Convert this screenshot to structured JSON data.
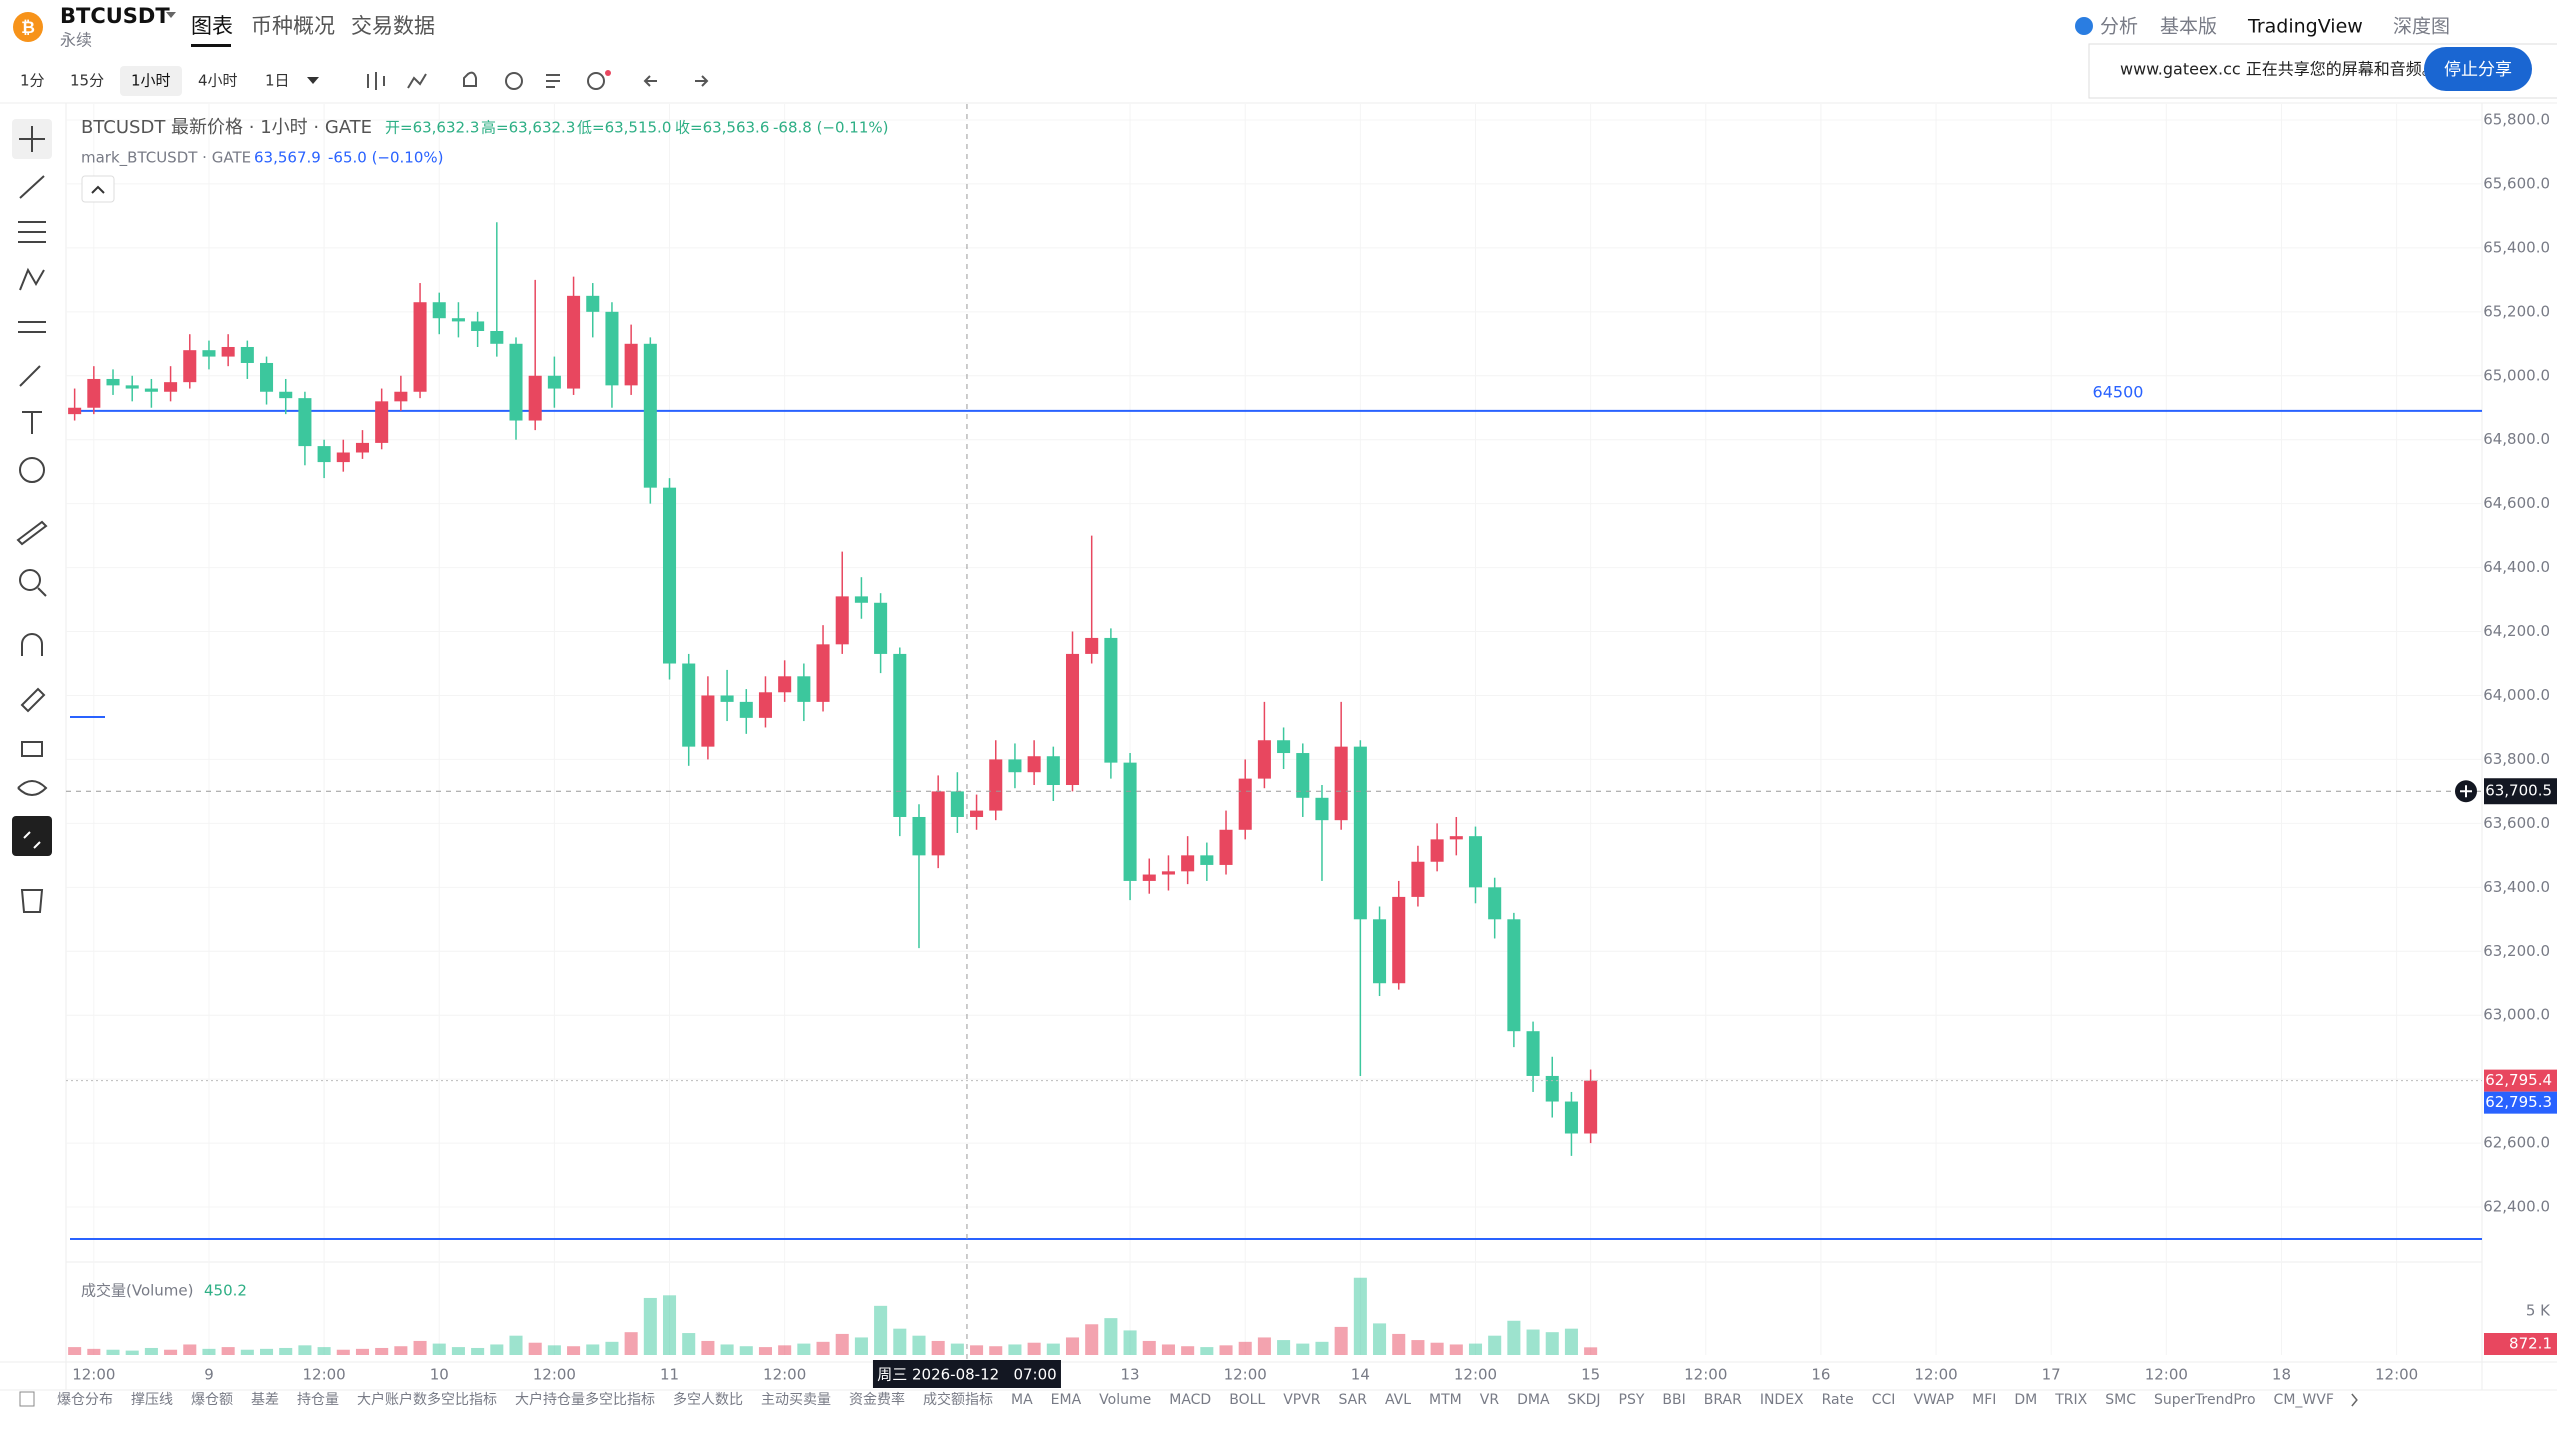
{
  "header": {
    "symbol": "BTCUSDT",
    "contract": "永续",
    "tabs": [
      "图表",
      "币种概况",
      "交易数据"
    ],
    "right_links": [
      "分析",
      "基本版",
      "TradingView",
      "深度图"
    ]
  },
  "share_bar": {
    "message": "www.gateex.cc 正在共享您的屏幕和音频。",
    "button": "停止分享"
  },
  "intervals": [
    "1分",
    "15分",
    "1小时",
    "4小时",
    "1日"
  ],
  "chart_data": {
    "type": "candlestick",
    "title": "BTCUSDT 最新价格 · 1小时 · GATE",
    "ohlc_legend": [
      "开=63,632.3",
      "高=63,632.3",
      "低=63,515.0",
      "收=63,563.6"
    ],
    "change": "-68.8 (−0.11%)",
    "mark_series": {
      "name": "mark_BTCUSDT · GATE",
      "value_label": "63,567.9",
      "change": "-65.0 (−0.10%)"
    },
    "up_color": "#e8475f",
    "down_color": "#3cc79d",
    "grid": true,
    "x": [
      0,
      2,
      4,
      6,
      8,
      10,
      12,
      14,
      16,
      18,
      20,
      22,
      24,
      26,
      28,
      30,
      32,
      34,
      36,
      38,
      40,
      42,
      44,
      46,
      48,
      50,
      52,
      54,
      56,
      58,
      60,
      62,
      64,
      66,
      68,
      70,
      72,
      74,
      76,
      78,
      80,
      82,
      84,
      86,
      88,
      90,
      92,
      94,
      96,
      98,
      100,
      102,
      104,
      106,
      108,
      110,
      112,
      114,
      116,
      118,
      120,
      122,
      124,
      126,
      128,
      130,
      132,
      134,
      136,
      138,
      140,
      142,
      144,
      146,
      148,
      150,
      152,
      154,
      156,
      158
    ],
    "open": [
      64880,
      64900,
      64990,
      64970,
      64960,
      64950,
      64980,
      65080,
      65060,
      65090,
      65040,
      64950,
      64930,
      64780,
      64730,
      64760,
      64790,
      64920,
      64950,
      65230,
      65180,
      65170,
      65140,
      65100,
      64860,
      65000,
      64960,
      65250,
      65200,
      64970,
      65100,
      64650,
      64100,
      63840,
      64000,
      63980,
      63930,
      64010,
      64060,
      63980,
      64160,
      64310,
      64290,
      64130,
      63620,
      63500,
      63700,
      63620,
      63640,
      63800,
      63760,
      63810,
      63720,
      64130,
      64180,
      63790,
      63420,
      63440,
      63450,
      63500,
      63470,
      63580,
      63740,
      63860,
      63820,
      63680,
      63610,
      63840,
      63300,
      63100,
      63370,
      63480,
      63550,
      63560,
      63400,
      63300,
      62950,
      62810,
      62730,
      62630
    ],
    "high": [
      64960,
      65030,
      65020,
      65000,
      64990,
      65030,
      65130,
      65110,
      65130,
      65110,
      65060,
      64990,
      64950,
      64800,
      64800,
      64830,
      64960,
      65000,
      65290,
      65260,
      65230,
      65200,
      65480,
      65120,
      65300,
      65060,
      65310,
      65290,
      65230,
      65160,
      65120,
      64680,
      64130,
      64060,
      64080,
      64020,
      64060,
      64110,
      64100,
      64220,
      64450,
      64370,
      64320,
      64150,
      63660,
      63750,
      63760,
      63690,
      63860,
      63850,
      63860,
      63840,
      64200,
      64500,
      64210,
      63820,
      63490,
      63500,
      63560,
      63540,
      63640,
      63800,
      63980,
      63900,
      63850,
      63720,
      63980,
      63860,
      63340,
      63420,
      63530,
      63600,
      63620,
      63590,
      63430,
      63320,
      62980,
      62870,
      62760,
      62830
    ],
    "low": [
      64860,
      64880,
      64940,
      64920,
      64900,
      64920,
      64960,
      65020,
      65030,
      64990,
      64910,
      64880,
      64720,
      64680,
      64700,
      64740,
      64770,
      64890,
      64930,
      65130,
      65120,
      65090,
      65060,
      64800,
      64830,
      64900,
      64940,
      65120,
      64900,
      64940,
      64600,
      64050,
      63780,
      63800,
      63920,
      63880,
      63900,
      63980,
      63920,
      63950,
      64130,
      64240,
      64070,
      63560,
      63210,
      63460,
      63570,
      63580,
      63610,
      63710,
      63720,
      63670,
      63700,
      64100,
      63740,
      63360,
      63380,
      63390,
      63410,
      63420,
      63440,
      63550,
      63710,
      63770,
      63620,
      63420,
      63580,
      62810,
      63060,
      63080,
      63340,
      63450,
      63500,
      63350,
      63240,
      62900,
      62760,
      62680,
      62560,
      62600
    ],
    "close": [
      64900,
      64990,
      64970,
      64960,
      64950,
      64980,
      65080,
      65060,
      65090,
      65040,
      64950,
      64930,
      64780,
      64730,
      64760,
      64790,
      64920,
      64950,
      65230,
      65180,
      65170,
      65140,
      65100,
      64860,
      65000,
      64960,
      65250,
      65200,
      64970,
      65100,
      64650,
      64100,
      63840,
      64000,
      63980,
      63930,
      64010,
      64060,
      63980,
      64160,
      64310,
      64290,
      64130,
      63620,
      63500,
      63700,
      63620,
      63640,
      63800,
      63760,
      63810,
      63720,
      64130,
      64180,
      63790,
      63420,
      63440,
      63450,
      63500,
      63470,
      63580,
      63740,
      63860,
      63820,
      63680,
      63610,
      63840,
      63300,
      63100,
      63370,
      63480,
      63550,
      63560,
      63400,
      63300,
      62950,
      62810,
      62730,
      62630,
      62795.4
    ],
    "xlim": [
      -0.9,
      250.9
    ],
    "xticks": [
      {
        "value": 2,
        "label": "12:00"
      },
      {
        "value": 14,
        "label": "9"
      },
      {
        "value": 26,
        "label": "12:00"
      },
      {
        "value": 38,
        "label": "10"
      },
      {
        "value": 50,
        "label": "12:00"
      },
      {
        "value": 62,
        "label": "11"
      },
      {
        "value": 74,
        "label": "12:00"
      },
      {
        "value": 110,
        "label": "13"
      },
      {
        "value": 122,
        "label": "12:00"
      },
      {
        "value": 134,
        "label": "14"
      },
      {
        "value": 146,
        "label": "12:00"
      },
      {
        "value": 158,
        "label": "15"
      },
      {
        "value": 170,
        "label": "12:00"
      },
      {
        "value": 182,
        "label": "16"
      },
      {
        "value": 194,
        "label": "12:00"
      },
      {
        "value": 206,
        "label": "17"
      },
      {
        "value": 218,
        "label": "12:00"
      },
      {
        "value": 230,
        "label": "18"
      },
      {
        "value": 242,
        "label": "12:00"
      }
    ],
    "ylim": [
      62250,
      65850
    ],
    "yticks": [
      {
        "value": 65800,
        "label": "65,800.0"
      },
      {
        "value": 65600,
        "label": "65,600.0"
      },
      {
        "value": 65400,
        "label": "65,400.0"
      },
      {
        "value": 65200,
        "label": "65,200.0"
      },
      {
        "value": 65000,
        "label": "65,000.0"
      },
      {
        "value": 64800,
        "label": "64,800.0"
      },
      {
        "value": 64600,
        "label": "64,600.0"
      },
      {
        "value": 64400,
        "label": "64,400.0"
      },
      {
        "value": 64200,
        "label": "64,200.0"
      },
      {
        "value": 64000,
        "label": "64,000.0"
      },
      {
        "value": 63800,
        "label": "63,800.0"
      },
      {
        "value": 63600,
        "label": "63,600.0"
      },
      {
        "value": 63400,
        "label": "63,400.0"
      },
      {
        "value": 63200,
        "label": "63,200.0"
      },
      {
        "value": 63000,
        "label": "63,000.0"
      },
      {
        "value": 62800,
        "label": "62,800.0"
      },
      {
        "value": 62600,
        "label": "62,600.0"
      },
      {
        "value": 62400,
        "label": "62,400.0"
      }
    ],
    "hlines": [
      {
        "name": "64500",
        "value": 64890,
        "color": "#2962ff"
      },
      {
        "value": 62300,
        "color": "#2962ff"
      }
    ],
    "last_price": {
      "value": 62795.4,
      "label": "62,795.4",
      "color": "#e8475f"
    },
    "mark_price": {
      "value": 62795.3,
      "label": "62,795.3",
      "color": "#2962ff"
    },
    "crosshair": {
      "x_value": 93,
      "x_label": "周三 2026-08-12   07:00",
      "y_value": 63700.5,
      "y_label": "63,700.5"
    },
    "volume": {
      "name": "成交量(Volume)",
      "value_label": "450.2",
      "ylim": [
        0,
        9000
      ],
      "yticks": [
        {
          "value": 5000,
          "label": "5 K"
        }
      ],
      "last": {
        "value": 872.1,
        "label": "872.1"
      },
      "values": [
        900,
        700,
        600,
        500,
        800,
        600,
        1200,
        700,
        900,
        600,
        700,
        800,
        1100,
        900,
        600,
        700,
        800,
        1000,
        1600,
        1300,
        900,
        800,
        1200,
        2200,
        1400,
        1100,
        1000,
        1200,
        1500,
        2600,
        6500,
        6800,
        2500,
        1600,
        1200,
        1000,
        900,
        1100,
        1300,
        1500,
        2400,
        2000,
        5600,
        3000,
        2200,
        1600,
        1300,
        1100,
        1000,
        1200,
        1400,
        1300,
        2000,
        3500,
        4200,
        2800,
        1600,
        1200,
        1000,
        900,
        1100,
        1500,
        2000,
        1700,
        1300,
        1500,
        3200,
        8800,
        3600,
        2400,
        1700,
        1400,
        1200,
        1300,
        2200,
        3900,
        2900,
        2600,
        3000,
        872.1
      ]
    }
  },
  "indicators": [
    "爆仓分布",
    "撑压线",
    "爆仓额",
    "基差",
    "持仓量",
    "大户账户数多空比指标",
    "大户持仓量多空比指标",
    "多空人数比",
    "主动买卖量",
    "资金费率",
    "成交额指标",
    "MA",
    "EMA",
    "Volume",
    "MACD",
    "BOLL",
    "VPVR",
    "SAR",
    "AVL",
    "MTM",
    "VR",
    "DMA",
    "SKDJ",
    "PSY",
    "BBI",
    "BRAR",
    "INDEX",
    "Rate",
    "CCI",
    "VWAP",
    "MFI",
    "DM",
    "TRIX",
    "SMC",
    "SuperTrendPro",
    "CM_WVF"
  ]
}
